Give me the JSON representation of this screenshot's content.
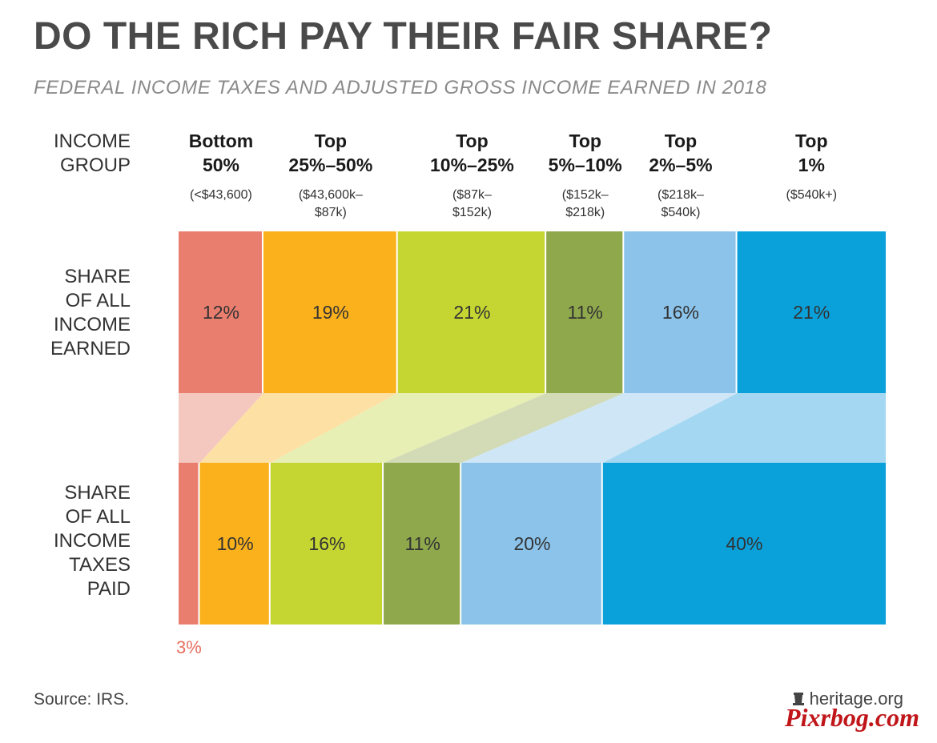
{
  "header": {
    "title": "DO THE RICH PAY THEIR FAIR SHARE?",
    "subtitle": "FEDERAL INCOME TAXES AND ADJUSTED GROSS INCOME EARNED IN 2018"
  },
  "chart_data": {
    "type": "bar",
    "group_header": [
      "INCOME",
      "GROUP"
    ],
    "categories": [
      {
        "name": [
          "Bottom",
          "50%"
        ],
        "range": [
          "(<$43,600)"
        ]
      },
      {
        "name": [
          "Top",
          "25%–50%"
        ],
        "range": [
          "($43,600k–",
          "$87k)"
        ]
      },
      {
        "name": [
          "Top",
          "10%–25%"
        ],
        "range": [
          "($87k–",
          "$152k)"
        ]
      },
      {
        "name": [
          "Top",
          "5%–10%"
        ],
        "range": [
          "($152k–",
          "$218k)"
        ]
      },
      {
        "name": [
          "Top",
          "2%–5%"
        ],
        "range": [
          "($218k–",
          "$540k)"
        ]
      },
      {
        "name": [
          "Top",
          "1%"
        ],
        "range": [
          "($540k+)"
        ]
      }
    ],
    "series": [
      {
        "row_label": [
          "SHARE",
          "OF ALL",
          "INCOME",
          "EARNED"
        ],
        "values": [
          12,
          19,
          21,
          11,
          16,
          21
        ],
        "labels": [
          "12%",
          "19%",
          "21%",
          "11%",
          "16%",
          "21%"
        ]
      },
      {
        "row_label": [
          "SHARE",
          "OF ALL",
          "INCOME",
          "TAXES",
          "PAID"
        ],
        "values": [
          3,
          10,
          16,
          11,
          20,
          40
        ],
        "labels": [
          "3%",
          "10%",
          "16%",
          "11%",
          "20%",
          "40%"
        ]
      }
    ],
    "colors": [
      "#e97e6f",
      "#fbb11c",
      "#c5d632",
      "#8fa84c",
      "#8bc3ea",
      "#0aa1db"
    ],
    "light_colors": [
      "#f5c8bf",
      "#fde0a4",
      "#e8efb4",
      "#d2dbb5",
      "#cfe6f7",
      "#a4d8f2"
    ],
    "outside_label_color": "#e5705f",
    "unit": "%"
  },
  "footer": {
    "source": "Source: IRS.",
    "brand": "heritage.org",
    "watermark": "Pixrbog.com"
  }
}
